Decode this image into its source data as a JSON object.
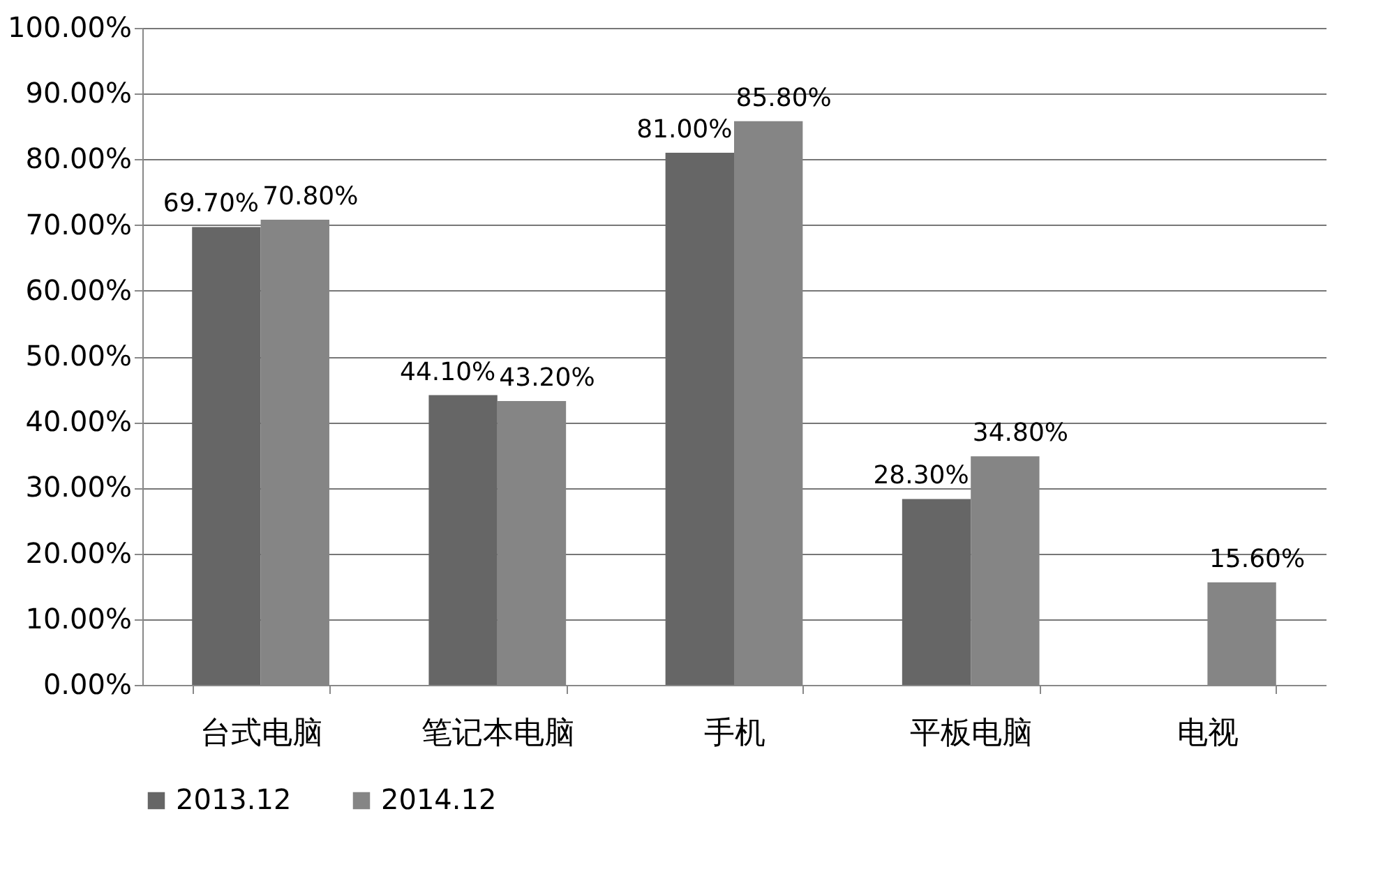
{
  "chart_data": {
    "type": "bar",
    "categories": [
      "台式电脑",
      "笔记本电脑",
      "手机",
      "平板电脑",
      "电视"
    ],
    "series": [
      {
        "name": "2013.12",
        "color": "#666666",
        "values": [
          69.7,
          44.1,
          81.0,
          28.3,
          null
        ],
        "value_labels": [
          "69.70%",
          "44.10%",
          "81.00%",
          "28.30%",
          null
        ]
      },
      {
        "name": "2014.12",
        "color": "#858585",
        "values": [
          70.8,
          43.2,
          85.8,
          34.8,
          15.6
        ],
        "value_labels": [
          "70.80%",
          "43.20%",
          "85.80%",
          "34.80%",
          "15.60%"
        ]
      }
    ],
    "ylim": [
      0,
      100
    ],
    "yticks": [
      {
        "value": 0,
        "label": "0.00%"
      },
      {
        "value": 10,
        "label": "10.00%"
      },
      {
        "value": 20,
        "label": "20.00%"
      },
      {
        "value": 30,
        "label": "30.00%"
      },
      {
        "value": 40,
        "label": "40.00%"
      },
      {
        "value": 50,
        "label": "50.00%"
      },
      {
        "value": 60,
        "label": "60.00%"
      },
      {
        "value": 70,
        "label": "70.00%"
      },
      {
        "value": 80,
        "label": "80.00%"
      },
      {
        "value": 90,
        "label": "90.00%"
      },
      {
        "value": 100,
        "label": "100.00%"
      }
    ],
    "grid": "y",
    "legend": "bottom left"
  }
}
